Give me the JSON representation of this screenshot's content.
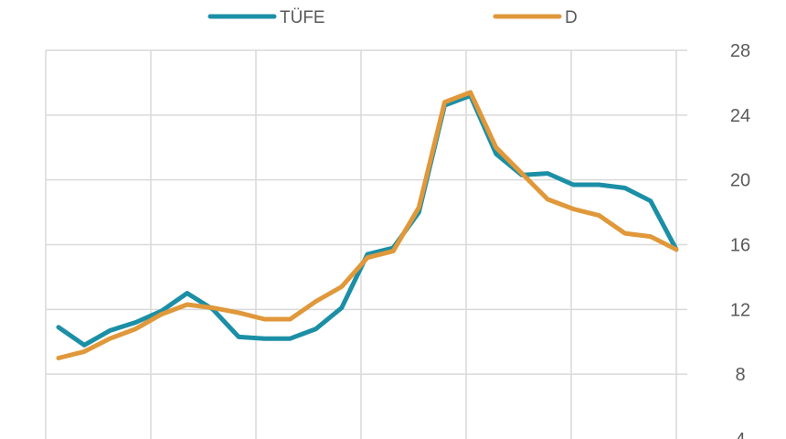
{
  "chart_data": {
    "type": "line",
    "title": "",
    "xlabel": "",
    "ylabel": "",
    "ylim": [
      4,
      28
    ],
    "y_ticks": [
      "4",
      "8",
      "12",
      "16",
      "20",
      "24",
      "28"
    ],
    "y_axis_side": "right",
    "grid": true,
    "legend_position": "top",
    "series": [
      {
        "name": "TÜFE",
        "color": "#1b8fa6",
        "values": [
          10.9,
          9.8,
          10.7,
          11.2,
          11.9,
          13.0,
          12.0,
          10.3,
          10.2,
          10.2,
          10.8,
          12.1,
          15.4,
          15.8,
          18.0,
          24.6,
          25.2,
          21.6,
          20.3,
          20.4,
          19.7,
          19.7,
          19.5,
          18.7,
          15.7
        ]
      },
      {
        "name": "D",
        "color": "#e0983a",
        "values": [
          9.0,
          9.4,
          10.2,
          10.8,
          11.7,
          12.3,
          12.1,
          11.8,
          11.4,
          11.4,
          12.5,
          13.4,
          15.2,
          15.6,
          18.3,
          24.8,
          25.4,
          22.0,
          20.4,
          18.8,
          18.2,
          17.8,
          16.7,
          16.5,
          15.7
        ]
      }
    ]
  }
}
